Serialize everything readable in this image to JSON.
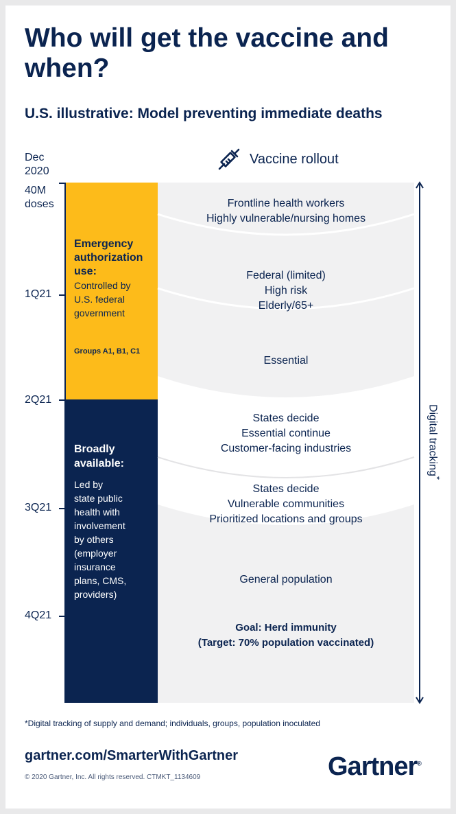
{
  "title": "Who will get the vaccine and when?",
  "subtitle": "U.S. illustrative: Model preventing immediate deaths",
  "timeline": {
    "start_label": [
      "Dec",
      "2020"
    ],
    "doses_label": [
      "40M",
      "doses"
    ],
    "ticks": [
      "1Q21",
      "2Q21",
      "3Q21",
      "4Q21"
    ]
  },
  "rollout": {
    "title": "Vaccine rollout",
    "icon": "syringe-icon",
    "stages": [
      [
        "Frontline health workers",
        "Highly vulnerable/nursing homes"
      ],
      [
        "Federal (limited)",
        "High risk",
        "Elderly/65+"
      ],
      [
        "Essential"
      ],
      [
        "States decide",
        "Essential continue",
        "Customer-facing industries"
      ],
      [
        "States decide",
        "Vulnerable communities",
        "Prioritized locations and groups"
      ],
      [
        "General population"
      ]
    ],
    "goal": [
      "Goal: Herd immunity",
      "(Target: 70% population vaccinated)"
    ]
  },
  "phases": {
    "emergency": {
      "heading": [
        "Emergency",
        "authorization",
        "use:"
      ],
      "body": [
        "Controlled by",
        "U.S. federal",
        "government"
      ],
      "groups": "Groups A1, B1, C1",
      "color": "#fdbb1a"
    },
    "broad": {
      "heading": [
        "Broadly",
        "available:"
      ],
      "body": [
        "Led by",
        "state public",
        "health with",
        "involvement",
        "by others",
        "(employer",
        "insurance",
        "plans, CMS,",
        "providers)"
      ],
      "color": "#0b2450"
    }
  },
  "tracking": {
    "label": "Digital tracking",
    "asterisk": "*"
  },
  "footnote": "*Digital tracking of supply and demand; individuals, groups, population inoculated",
  "footer": {
    "site": "gartner.com/SmarterWithGartner",
    "copyright": "© 2020 Gartner, Inc. All rights reserved. CTMKT_1134609",
    "logo": "Gartner",
    "logo_mark": "®"
  },
  "colors": {
    "navy": "#0b2450",
    "yellow": "#fdbb1a",
    "panel_gray": "#f1f1f2"
  }
}
